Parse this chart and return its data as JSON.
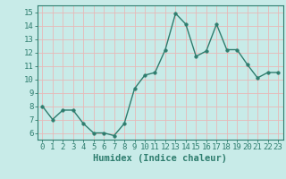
{
  "x": [
    0,
    1,
    2,
    3,
    4,
    5,
    6,
    7,
    8,
    9,
    10,
    11,
    12,
    13,
    14,
    15,
    16,
    17,
    18,
    19,
    20,
    21,
    22,
    23
  ],
  "y": [
    8.0,
    7.0,
    7.7,
    7.7,
    6.7,
    6.0,
    6.0,
    5.8,
    6.7,
    9.3,
    10.3,
    10.5,
    12.2,
    14.9,
    14.1,
    11.7,
    12.1,
    14.1,
    12.2,
    12.2,
    11.1,
    10.1,
    10.5,
    10.5
  ],
  "line_color": "#2e7d6e",
  "marker": "o",
  "markersize": 2.5,
  "linewidth": 1.0,
  "xlabel": "Humidex (Indice chaleur)",
  "xlim": [
    -0.5,
    23.5
  ],
  "ylim": [
    5.5,
    15.5
  ],
  "yticks": [
    6,
    7,
    8,
    9,
    10,
    11,
    12,
    13,
    14,
    15
  ],
  "xticks": [
    0,
    1,
    2,
    3,
    4,
    5,
    6,
    7,
    8,
    9,
    10,
    11,
    12,
    13,
    14,
    15,
    16,
    17,
    18,
    19,
    20,
    21,
    22,
    23
  ],
  "bg_color": "#c8ebe8",
  "grid_color": "#e8b8b8",
  "tick_color": "#2e7d6e",
  "label_color": "#2e7d6e",
  "xlabel_fontsize": 7.5,
  "tick_fontsize": 6.5
}
